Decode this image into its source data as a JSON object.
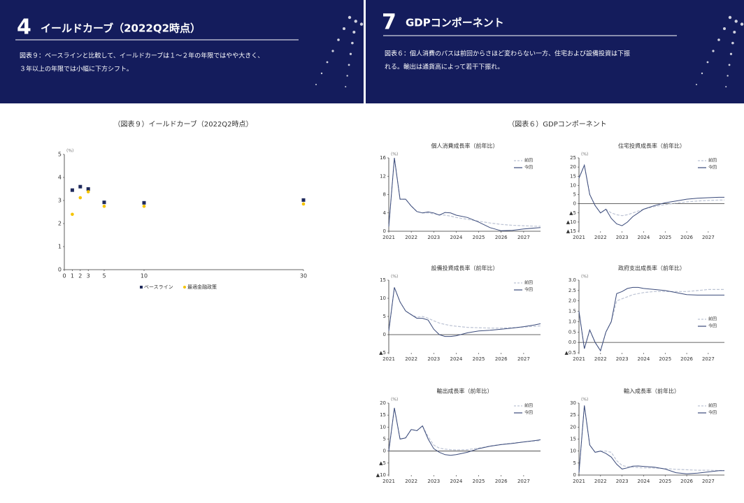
{
  "slides": [
    {
      "number": "4",
      "title": "イールドカーブ（2022Q2時点）",
      "description": [
        "図表９：ベースラインと比較して、イールドカーブは１～２年の年限ではやや大きく、",
        "３年以上の年限では小幅に下方シフト。"
      ],
      "figure_title": "（図表９）イールドカーブ（2022Q2時点）"
    },
    {
      "number": "7",
      "title": "GDPコンポーネント",
      "description": [
        "図表６：個人消費のパスは前回からさほど変わらない一方、住宅および設備投資は下振",
        "れる。輸出は通貨高によって若干下振れ。"
      ],
      "figure_title": "（図表６）GDPコンポーネント"
    }
  ],
  "chart_data": [
    {
      "type": "scatter",
      "unit": "(%)",
      "x": [
        1,
        2,
        3,
        5,
        10,
        30
      ],
      "xlim": [
        0,
        30
      ],
      "xticks": [
        0,
        1,
        2,
        3,
        5,
        10,
        30
      ],
      "ylim": [
        0,
        5
      ],
      "yticks": [
        0,
        1,
        2,
        3,
        4,
        5
      ],
      "legend": "bottom",
      "series": [
        {
          "name": "ベースライン",
          "color": "#1f2a5c",
          "marker": "square",
          "values": [
            3.45,
            3.6,
            3.5,
            2.92,
            2.9,
            3.02
          ]
        },
        {
          "name": "最適金融政策",
          "color": "#f5c400",
          "marker": "circle",
          "values": [
            2.4,
            3.12,
            3.38,
            2.75,
            2.75,
            2.85
          ]
        }
      ]
    },
    {
      "type": "line",
      "title": "個人消費成長率（前年比）",
      "unit": "(%)",
      "x": [
        2021,
        2021.25,
        2021.5,
        2021.75,
        2022,
        2022.25,
        2022.5,
        2022.75,
        2023,
        2023.25,
        2023.5,
        2023.75,
        2024,
        2024.5,
        2025,
        2025.5,
        2026,
        2026.5,
        2027,
        2027.5,
        2027.75
      ],
      "xlim": [
        2021,
        2027.75
      ],
      "xticks": [
        2021,
        2022,
        2023,
        2024,
        2025,
        2026,
        2027
      ],
      "ylim": [
        0,
        16
      ],
      "yticks": [
        0,
        4,
        8,
        12,
        16
      ],
      "legend": "upper right",
      "series": [
        {
          "name": "前回",
          "color": "#bcc3d4",
          "dashed": true,
          "values": [
            1,
            16,
            7,
            7,
            5.5,
            4.3,
            4,
            4,
            3.8,
            3.6,
            3.5,
            3.3,
            3,
            2.6,
            2.2,
            1.8,
            1.5,
            1.3,
            1.2,
            1.1,
            1.1
          ]
        },
        {
          "name": "今回",
          "color": "#3a4a7a",
          "dashed": false,
          "values": [
            1,
            16,
            7,
            7,
            5.5,
            4.3,
            4,
            4.2,
            4,
            3.5,
            4.1,
            4,
            3.5,
            3,
            2,
            0.8,
            0.1,
            0.2,
            0.5,
            0.7,
            0.8
          ]
        }
      ]
    },
    {
      "type": "line",
      "title": "住宅投資成長率（前年比）",
      "unit": "(%)",
      "x": [
        2021,
        2021.25,
        2021.5,
        2021.75,
        2022,
        2022.25,
        2022.5,
        2022.75,
        2023,
        2023.25,
        2023.5,
        2023.75,
        2024,
        2024.5,
        2025,
        2025.5,
        2026,
        2026.5,
        2027,
        2027.5,
        2027.75
      ],
      "xlim": [
        2021,
        2027.75
      ],
      "xticks": [
        2021,
        2022,
        2023,
        2024,
        2025,
        2026,
        2027
      ],
      "ylim": [
        -15,
        25
      ],
      "yticks": [
        {
          "value": -15,
          "label": "▲15"
        },
        {
          "value": -10,
          "label": "▲10"
        },
        {
          "value": -5,
          "label": "▲5"
        },
        0,
        5,
        10,
        15,
        20,
        25
      ],
      "legend": "upper right",
      "series": [
        {
          "name": "前回",
          "color": "#bcc3d4",
          "dashed": true,
          "values": [
            14,
            21,
            5,
            -1,
            -5,
            -3,
            -5,
            -6,
            -6.5,
            -6,
            -5,
            -4,
            -3,
            -1.5,
            -0.5,
            0.3,
            1,
            1.5,
            1.8,
            2,
            2
          ]
        },
        {
          "name": "今回",
          "color": "#3a4a7a",
          "dashed": false,
          "values": [
            14,
            21,
            5,
            -1,
            -5,
            -3,
            -8,
            -11,
            -12,
            -10,
            -7,
            -5,
            -3,
            -1,
            0.5,
            1.5,
            2.5,
            3,
            3.3,
            3.5,
            3.5
          ]
        }
      ]
    },
    {
      "type": "line",
      "title": "設備投資成長率（前年比）",
      "unit": "(%)",
      "x": [
        2021,
        2021.25,
        2021.5,
        2021.75,
        2022,
        2022.25,
        2022.5,
        2022.75,
        2023,
        2023.25,
        2023.5,
        2023.75,
        2024,
        2024.5,
        2025,
        2025.5,
        2026,
        2026.5,
        2027,
        2027.5,
        2027.75
      ],
      "xlim": [
        2021,
        2027.75
      ],
      "xticks": [
        2021,
        2022,
        2023,
        2024,
        2025,
        2026,
        2027
      ],
      "ylim": [
        -5,
        15
      ],
      "yticks": [
        {
          "value": -5,
          "label": "▲5"
        },
        0,
        5,
        10,
        15
      ],
      "legend": "upper right",
      "series": [
        {
          "name": "前回",
          "color": "#bcc3d4",
          "dashed": true,
          "values": [
            1,
            13,
            9,
            6.5,
            5.5,
            4.8,
            5,
            4.5,
            3.8,
            3.2,
            2.8,
            2.5,
            2.3,
            2,
            1.9,
            1.8,
            1.8,
            1.9,
            2.1,
            2.3,
            2.4
          ]
        },
        {
          "name": "今回",
          "color": "#3a4a7a",
          "dashed": false,
          "values": [
            1,
            13,
            9,
            6.5,
            5.5,
            4.5,
            4.5,
            4,
            1.5,
            0,
            -0.5,
            -0.5,
            -0.3,
            0.5,
            1,
            1.2,
            1.5,
            1.8,
            2.2,
            2.7,
            3
          ]
        }
      ]
    },
    {
      "type": "line",
      "title": "政府支出成長率（前年比）",
      "unit": "(%)",
      "x": [
        2021,
        2021.25,
        2021.5,
        2021.75,
        2022,
        2022.25,
        2022.5,
        2022.75,
        2023,
        2023.25,
        2023.5,
        2023.75,
        2024,
        2024.5,
        2025,
        2025.5,
        2026,
        2026.5,
        2027,
        2027.5,
        2027.75
      ],
      "xlim": [
        2021,
        2027.75
      ],
      "xticks": [
        2021,
        2022,
        2023,
        2024,
        2025,
        2026,
        2027
      ],
      "ylim": [
        -0.5,
        3
      ],
      "yticks": [
        {
          "value": -0.5,
          "label": "▲0.5"
        },
        {
          "value": 0,
          "label": "0.0"
        },
        0.5,
        {
          "value": 1,
          "label": "1.0"
        },
        1.5,
        {
          "value": 2,
          "label": "2.0"
        },
        2.5,
        {
          "value": 3,
          "label": "3.0"
        }
      ],
      "legend": "right",
      "series": [
        {
          "name": "前回",
          "color": "#bcc3d4",
          "dashed": true,
          "values": [
            1.5,
            -0.3,
            0.6,
            0,
            -0.4,
            0.5,
            1,
            2,
            2.1,
            2.2,
            2.3,
            2.35,
            2.4,
            2.45,
            2.45,
            2.45,
            2.45,
            2.5,
            2.55,
            2.55,
            2.55
          ]
        },
        {
          "name": "今回",
          "color": "#3a4a7a",
          "dashed": false,
          "values": [
            1.5,
            -0.3,
            0.6,
            0,
            -0.4,
            0.5,
            1,
            2.35,
            2.45,
            2.6,
            2.65,
            2.65,
            2.6,
            2.55,
            2.5,
            2.4,
            2.3,
            2.28,
            2.28,
            2.28,
            2.28
          ]
        }
      ]
    },
    {
      "type": "line",
      "title": "輸出成長率（前年比）",
      "unit": "(%)",
      "x": [
        2021,
        2021.25,
        2021.5,
        2021.75,
        2022,
        2022.25,
        2022.5,
        2022.75,
        2023,
        2023.25,
        2023.5,
        2023.75,
        2024,
        2024.5,
        2025,
        2025.5,
        2026,
        2026.5,
        2027,
        2027.5,
        2027.75
      ],
      "xlim": [
        2021,
        2027.75
      ],
      "xticks": [
        2021,
        2022,
        2023,
        2024,
        2025,
        2026,
        2027
      ],
      "ylim": [
        -10,
        20
      ],
      "yticks": [
        {
          "value": -10,
          "label": "▲10"
        },
        {
          "value": -5,
          "label": "▲5"
        },
        0,
        5,
        10,
        15,
        20
      ],
      "legend": "upper right",
      "series": [
        {
          "name": "前回",
          "color": "#bcc3d4",
          "dashed": true,
          "values": [
            0,
            18,
            5,
            5.5,
            9,
            8.5,
            10.5,
            6,
            2.5,
            1.2,
            0.8,
            0.6,
            0.5,
            0.6,
            1.2,
            2.1,
            2.8,
            3.3,
            3.8,
            4.2,
            4.4
          ]
        },
        {
          "name": "今回",
          "color": "#3a4a7a",
          "dashed": false,
          "values": [
            0,
            18,
            5,
            5.5,
            9,
            8.5,
            10.5,
            5,
            1,
            -0.5,
            -1.5,
            -1.8,
            -1.5,
            -0.5,
            1,
            2,
            2.7,
            3.2,
            3.8,
            4.4,
            4.7
          ]
        }
      ]
    },
    {
      "type": "line",
      "title": "輸入成長率（前年比）",
      "unit": "(%)",
      "x": [
        2021,
        2021.25,
        2021.5,
        2021.75,
        2022,
        2022.25,
        2022.5,
        2022.75,
        2023,
        2023.25,
        2023.5,
        2023.75,
        2024,
        2024.5,
        2025,
        2025.5,
        2026,
        2026.5,
        2027,
        2027.5,
        2027.75
      ],
      "xlim": [
        2021,
        2027.75
      ],
      "xticks": [
        2021,
        2022,
        2023,
        2024,
        2025,
        2026,
        2027
      ],
      "ylim": [
        0,
        30
      ],
      "yticks": [
        0,
        5,
        10,
        15,
        20,
        25,
        30
      ],
      "legend": "upper right",
      "series": [
        {
          "name": "前回",
          "color": "#bcc3d4",
          "dashed": true,
          "values": [
            1,
            29,
            12.5,
            9.5,
            10,
            10,
            9.5,
            6,
            4,
            3.5,
            3.3,
            3.1,
            3,
            2.9,
            2.7,
            2.4,
            2.2,
            2,
            2,
            1.9,
            1.9
          ]
        },
        {
          "name": "今回",
          "color": "#3a4a7a",
          "dashed": false,
          "values": [
            1,
            29,
            12.5,
            9.5,
            10,
            9,
            7.5,
            4.5,
            2.5,
            3,
            3.7,
            3.8,
            3.6,
            3.3,
            2.5,
            1,
            0.5,
            0.8,
            1.3,
            1.8,
            1.8
          ]
        }
      ]
    }
  ]
}
